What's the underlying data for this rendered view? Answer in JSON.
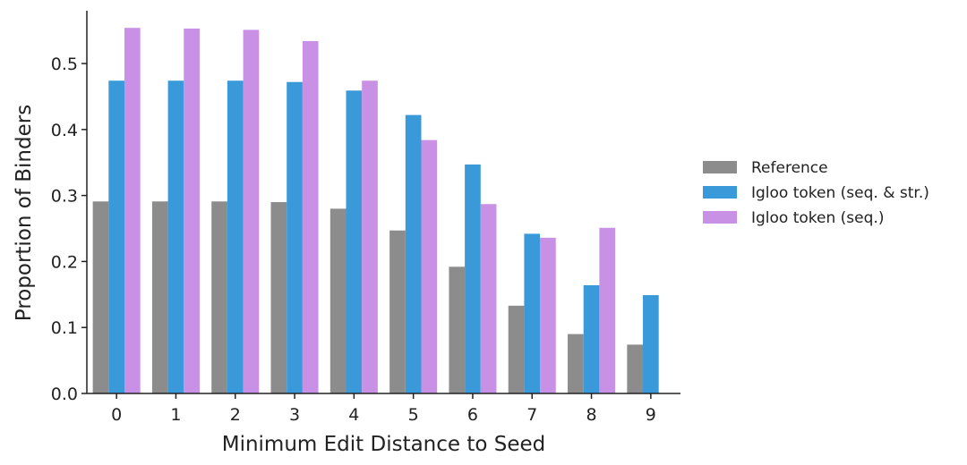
{
  "chart_data": {
    "type": "bar",
    "title": "",
    "xlabel": "Minimum Edit Distance to Seed",
    "ylabel": "Proportion of Binders",
    "categories": [
      "0",
      "1",
      "2",
      "3",
      "4",
      "5",
      "6",
      "7",
      "8",
      "9"
    ],
    "ylim": [
      0,
      0.58
    ],
    "yticks": [
      "0.0",
      "0.1",
      "0.2",
      "0.3",
      "0.4",
      "0.5"
    ],
    "grid": false,
    "legend_position": "right",
    "series": [
      {
        "name": "Reference",
        "color": "#8c8c8c",
        "values": [
          0.291,
          0.291,
          0.291,
          0.29,
          0.28,
          0.247,
          0.192,
          0.133,
          0.09,
          0.074
        ]
      },
      {
        "name": "Igloo token (seq. & str.)",
        "color": "#3a9ad9",
        "values": [
          0.474,
          0.474,
          0.474,
          0.472,
          0.459,
          0.422,
          0.347,
          0.242,
          0.164,
          0.149
        ]
      },
      {
        "name": "Igloo token (seq.)",
        "color": "#c991e6",
        "values": [
          0.554,
          0.553,
          0.551,
          0.534,
          0.474,
          0.384,
          0.287,
          0.236,
          0.251,
          null
        ]
      }
    ]
  }
}
